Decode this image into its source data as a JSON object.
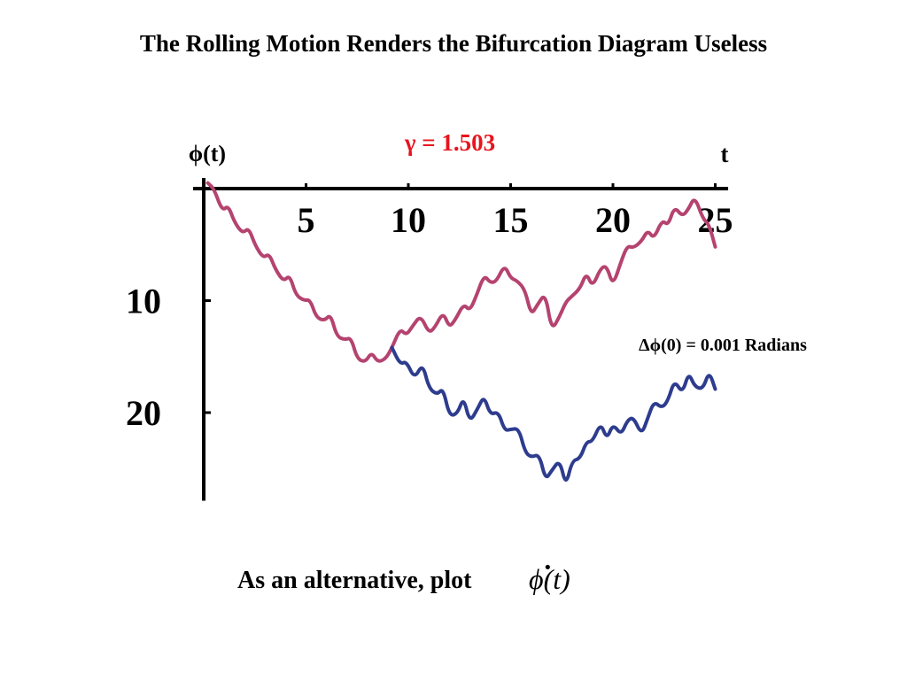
{
  "title": "The Rolling Motion Renders the Bifurcation Diagram Useless",
  "caption": {
    "text": "As an alternative, plot",
    "math": "ϕ(t)",
    "math_dot": "·"
  },
  "chart_data": {
    "type": "line",
    "title": "γ = 1.503",
    "title_color": "#e8141e",
    "ylabel": "ϕ(t)",
    "xlabel": "t",
    "annotation": "Δϕ(0) = 0.001 Radians",
    "xlim": [
      0,
      25.5
    ],
    "ylim": [
      -27,
      0
    ],
    "x_ticks": [
      5,
      10,
      15,
      20,
      25
    ],
    "x_tick_labels": [
      "5",
      "10",
      "15",
      "20",
      "25"
    ],
    "y_ticks": [
      -10,
      -20
    ],
    "y_tick_labels": [
      "−10",
      "−20"
    ],
    "y_tick_glyph_left": "",
    "y_tick_glyph_right": "",
    "series": [
      {
        "color": "#b5436f",
        "x": [
          0.2,
          0.5,
          0.9,
          1.2,
          1.5,
          1.9,
          2.2,
          2.5,
          2.9,
          3.2,
          3.5,
          3.9,
          4.2,
          4.5,
          4.9,
          5.2,
          5.5,
          5.9,
          6.2,
          6.5,
          6.9,
          7.2,
          7.5,
          7.9,
          8.2,
          8.5,
          8.9,
          9.2,
          9.6,
          9.9,
          10.2,
          10.6,
          11.0,
          11.3,
          11.7,
          12.0,
          12.3,
          12.7,
          13.0,
          13.3,
          13.7,
          14.0,
          14.3,
          14.7,
          15.0,
          15.3,
          15.7,
          16.0,
          16.3,
          16.7,
          17.0,
          17.4,
          17.7,
          18.0,
          18.4,
          18.7,
          19.0,
          19.4,
          19.7,
          20.0,
          20.4,
          20.7,
          21.0,
          21.4,
          21.7,
          22.0,
          22.4,
          22.7,
          23.0,
          23.4,
          23.7,
          24.0,
          24.4,
          24.7,
          25.0
        ],
        "y": [
          0.5,
          0.0,
          -2.0,
          -1.5,
          -3.0,
          -4.0,
          -3.5,
          -5.0,
          -6.2,
          -5.8,
          -7.2,
          -8.3,
          -7.7,
          -9.5,
          -10.0,
          -9.9,
          -11.5,
          -11.8,
          -11.2,
          -13.2,
          -13.5,
          -13.3,
          -15.2,
          -15.5,
          -14.6,
          -15.5,
          -15.2,
          -14.2,
          -12.5,
          -13.1,
          -12.3,
          -11.3,
          -12.9,
          -12.4,
          -11.0,
          -12.4,
          -11.7,
          -10.3,
          -10.9,
          -9.7,
          -7.7,
          -8.4,
          -8.3,
          -6.8,
          -8.0,
          -8.2,
          -9.0,
          -11.3,
          -10.4,
          -9.3,
          -12.7,
          -11.4,
          -10.1,
          -9.6,
          -8.9,
          -7.5,
          -8.8,
          -7.1,
          -6.9,
          -8.7,
          -6.5,
          -5.1,
          -5.3,
          -4.7,
          -3.7,
          -4.5,
          -2.8,
          -3.3,
          -1.6,
          -2.5,
          -1.8,
          -0.7,
          -2.7,
          -3.2,
          -5.2
        ]
      },
      {
        "color": "#2e3c8e",
        "x": [
          9.2,
          9.6,
          9.9,
          10.3,
          10.7,
          11.0,
          11.4,
          11.7,
          12.0,
          12.4,
          12.7,
          13.0,
          13.4,
          13.7,
          14.0,
          14.4,
          14.7,
          15.0,
          15.4,
          15.7,
          16.0,
          16.4,
          16.7,
          17.0,
          17.4,
          17.7,
          18.0,
          18.4,
          18.7,
          19.0,
          19.4,
          19.7,
          20.0,
          20.4,
          20.7,
          21.0,
          21.4,
          21.7,
          22.0,
          22.4,
          22.7,
          23.0,
          23.4,
          23.7,
          24.0,
          24.4,
          24.7,
          25.0
        ],
        "y": [
          -14.2,
          -15.7,
          -15.4,
          -17.0,
          -15.6,
          -17.8,
          -18.4,
          -17.8,
          -20.3,
          -20.1,
          -18.6,
          -20.9,
          -19.6,
          -18.5,
          -20.2,
          -19.9,
          -21.6,
          -21.5,
          -21.4,
          -23.5,
          -24.0,
          -23.7,
          -26.0,
          -25.2,
          -24.2,
          -26.6,
          -24.3,
          -24.1,
          -22.6,
          -22.6,
          -20.9,
          -22.4,
          -21.0,
          -22.0,
          -20.7,
          -20.4,
          -22.0,
          -20.5,
          -19.0,
          -19.6,
          -18.9,
          -17.1,
          -18.3,
          -16.4,
          -17.7,
          -17.9,
          -16.3,
          -17.9
        ]
      }
    ]
  }
}
